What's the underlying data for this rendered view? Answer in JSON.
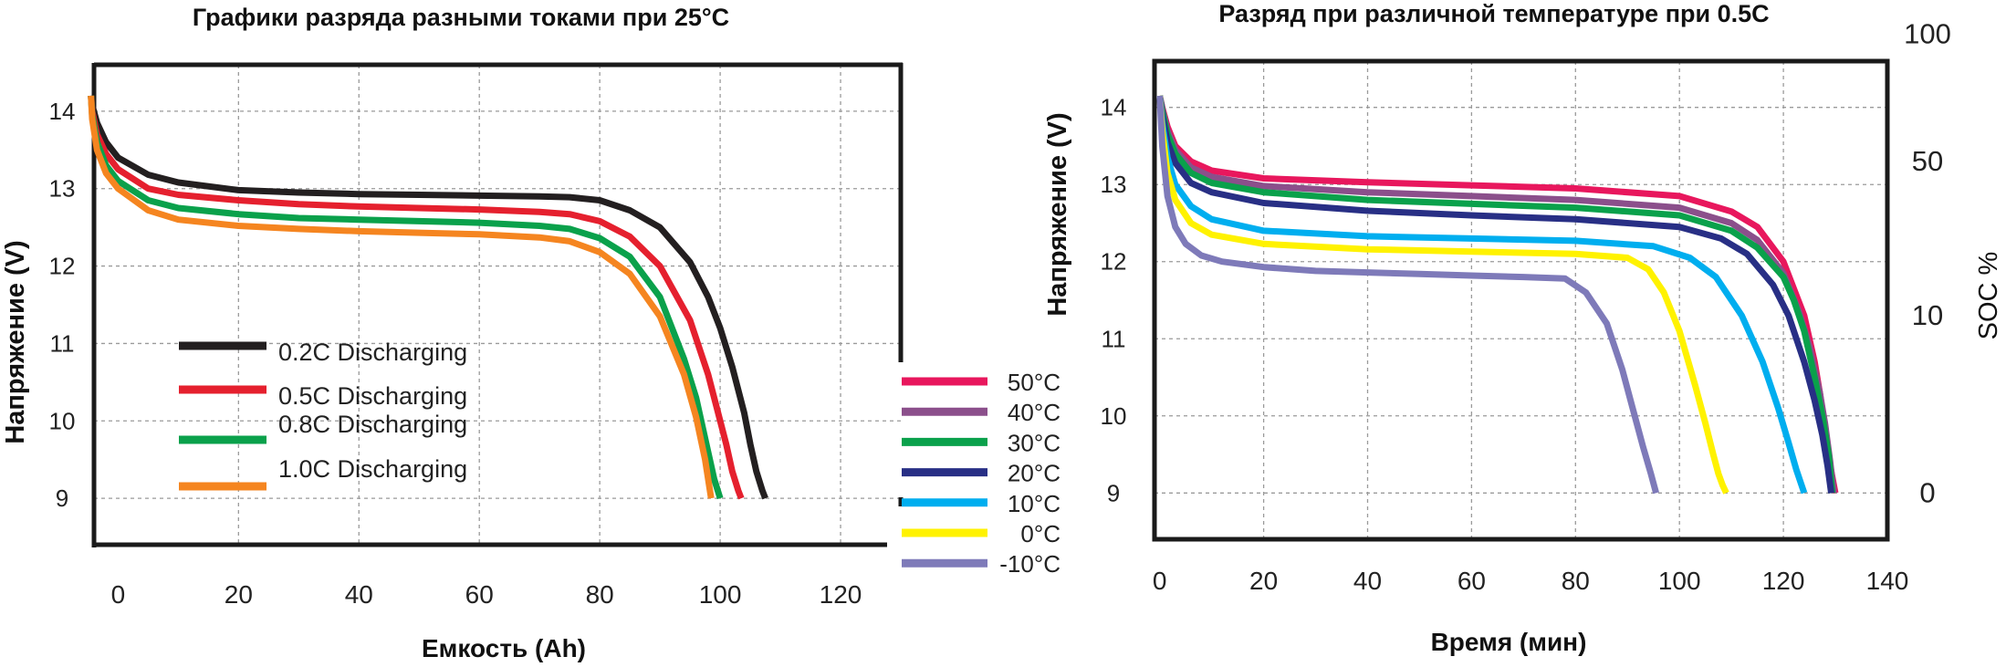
{
  "chart_data": [
    {
      "type": "line",
      "title": "Графики разряда разными токами при 25°C",
      "xlabel": "Емкость (Ah)",
      "ylabel": "Напряжение (V)",
      "xlim": [
        -4,
        130
      ],
      "ylim": [
        8.4,
        14.6
      ],
      "xticks": [
        "0",
        "20",
        "40",
        "60",
        "80",
        "100",
        "120"
      ],
      "xtick_values": [
        0,
        20,
        40,
        60,
        80,
        100,
        120
      ],
      "yticks": [
        "9",
        "10",
        "11",
        "12",
        "13",
        "14"
      ],
      "ytick_values": [
        9,
        10,
        11,
        12,
        13,
        14
      ],
      "grid": true,
      "legend_position": "inside-left",
      "series": [
        {
          "name": "0.2C Discharging",
          "color": "#231f20",
          "x": [
            -4.5,
            -4.3,
            -3.5,
            -2,
            0,
            5,
            10,
            20,
            30,
            40,
            50,
            60,
            70,
            75,
            80,
            85,
            90,
            95,
            98,
            100,
            102,
            104,
            105,
            106,
            107,
            107.5
          ],
          "y": [
            14.2,
            14.08,
            13.85,
            13.6,
            13.4,
            13.18,
            13.08,
            12.98,
            12.95,
            12.93,
            12.92,
            12.91,
            12.9,
            12.89,
            12.85,
            12.72,
            12.5,
            12.05,
            11.6,
            11.2,
            10.7,
            10.1,
            9.7,
            9.35,
            9.1,
            9.0
          ]
        },
        {
          "name": "0.5C Discharging",
          "color": "#e5202e",
          "x": [
            -4.5,
            -4.3,
            -3.5,
            -2,
            0,
            5,
            10,
            20,
            30,
            40,
            50,
            60,
            70,
            75,
            80,
            85,
            90,
            95,
            98,
            100,
            101,
            102,
            103,
            103.5
          ],
          "y": [
            14.2,
            14.0,
            13.7,
            13.45,
            13.25,
            13.0,
            12.92,
            12.85,
            12.8,
            12.77,
            12.75,
            12.73,
            12.7,
            12.67,
            12.58,
            12.38,
            12.0,
            11.3,
            10.6,
            10.0,
            9.7,
            9.35,
            9.1,
            9.0
          ]
        },
        {
          "name": "0.8C Discharging",
          "color": "#0aa14b",
          "x": [
            -4.5,
            -4.3,
            -3.5,
            -2,
            0,
            5,
            10,
            20,
            30,
            40,
            50,
            60,
            70,
            75,
            80,
            85,
            90,
            94,
            96,
            98,
            99,
            100
          ],
          "y": [
            14.2,
            13.95,
            13.6,
            13.3,
            13.1,
            12.85,
            12.75,
            12.67,
            12.62,
            12.6,
            12.58,
            12.56,
            12.52,
            12.48,
            12.36,
            12.12,
            11.6,
            10.8,
            10.3,
            9.6,
            9.25,
            9.0
          ]
        },
        {
          "name": "1.0C Discharging",
          "color": "#f58520",
          "x": [
            -4.5,
            -4.3,
            -3.5,
            -2,
            0,
            5,
            10,
            20,
            30,
            40,
            50,
            60,
            70,
            75,
            80,
            85,
            90,
            94,
            96,
            97.5,
            98.5
          ],
          "y": [
            14.2,
            13.9,
            13.5,
            13.2,
            13.0,
            12.72,
            12.6,
            12.52,
            12.48,
            12.45,
            12.43,
            12.41,
            12.37,
            12.32,
            12.18,
            11.9,
            11.35,
            10.6,
            10.05,
            9.5,
            9.0
          ]
        }
      ]
    },
    {
      "type": "line",
      "title": "Разряд при различной температуре при 0.5C",
      "xlabel": "Время (мин)",
      "ylabel": "Напряжение (V)",
      "y2label": "SOC %",
      "xlim": [
        -1,
        140
      ],
      "ylim": [
        8.4,
        14.6
      ],
      "xticks": [
        "0",
        "20",
        "40",
        "60",
        "80",
        "100",
        "120",
        "140"
      ],
      "xtick_values": [
        0,
        20,
        40,
        60,
        80,
        100,
        120,
        140
      ],
      "yticks": [
        "9",
        "10",
        "11",
        "12",
        "13",
        "14"
      ],
      "ytick_values": [
        9,
        10,
        11,
        12,
        13,
        14
      ],
      "y2ticks": [
        "0",
        "10",
        "50",
        "100"
      ],
      "y2tick_voltages": [
        9.0,
        11.3,
        13.3,
        14.95
      ],
      "grid": true,
      "legend_position": "left-outside",
      "series": [
        {
          "name": "50°C",
          "color": "#e8175d",
          "x": [
            0,
            0.5,
            1.5,
            3,
            6,
            10,
            20,
            40,
            60,
            80,
            100,
            110,
            115,
            120,
            124,
            126,
            127,
            128,
            129,
            130
          ],
          "y": [
            14.15,
            14.0,
            13.75,
            13.5,
            13.3,
            13.18,
            13.08,
            13.03,
            12.99,
            12.95,
            12.85,
            12.65,
            12.45,
            12.0,
            11.3,
            10.7,
            10.3,
            9.8,
            9.35,
            9.0
          ]
        },
        {
          "name": "40°C",
          "color": "#8b4f8b",
          "x": [
            0,
            0.5,
            1.5,
            3,
            6,
            10,
            20,
            40,
            60,
            80,
            100,
            110,
            115,
            120,
            123,
            125,
            127,
            128,
            129,
            129.7
          ],
          "y": [
            14.15,
            13.98,
            13.7,
            13.45,
            13.22,
            13.1,
            12.98,
            12.9,
            12.85,
            12.8,
            12.7,
            12.5,
            12.28,
            11.85,
            11.35,
            10.9,
            10.3,
            9.9,
            9.4,
            9.0
          ]
        },
        {
          "name": "30°C",
          "color": "#0aa14b",
          "x": [
            0,
            0.5,
            1.5,
            3,
            6,
            10,
            20,
            40,
            60,
            80,
            100,
            110,
            115,
            120,
            122,
            124,
            126,
            127.5,
            128.7,
            129.4
          ],
          "y": [
            14.15,
            13.95,
            13.65,
            13.4,
            13.15,
            13.02,
            12.9,
            12.8,
            12.75,
            12.7,
            12.6,
            12.4,
            12.18,
            11.8,
            11.5,
            11.1,
            10.5,
            10.0,
            9.5,
            9.0
          ]
        },
        {
          "name": "20°C",
          "color": "#282f85",
          "x": [
            0,
            0.5,
            1.5,
            3,
            6,
            10,
            20,
            40,
            60,
            80,
            100,
            108,
            113,
            118,
            121,
            124,
            126,
            127.5,
            128.5,
            129.2
          ],
          "y": [
            14.15,
            13.9,
            13.55,
            13.28,
            13.02,
            12.9,
            12.76,
            12.66,
            12.6,
            12.55,
            12.45,
            12.3,
            12.1,
            11.7,
            11.3,
            10.7,
            10.2,
            9.75,
            9.35,
            9.0
          ]
        },
        {
          "name": "10°C",
          "color": "#00aeef",
          "x": [
            0,
            0.5,
            1.5,
            3,
            6,
            10,
            20,
            40,
            60,
            80,
            95,
            102,
            107,
            112,
            116,
            119,
            121,
            122.5,
            123.5,
            124
          ],
          "y": [
            14.15,
            13.8,
            13.35,
            13.0,
            12.72,
            12.55,
            12.4,
            12.33,
            12.3,
            12.27,
            12.2,
            12.05,
            11.8,
            11.3,
            10.7,
            10.1,
            9.65,
            9.3,
            9.1,
            9.0
          ]
        },
        {
          "name": "0°C",
          "color": "#fff200",
          "x": [
            0,
            0.5,
            1.5,
            3,
            6,
            10,
            20,
            40,
            60,
            80,
            90,
            94,
            97,
            100,
            103,
            105,
            106.5,
            107.5,
            108.3,
            109
          ],
          "y": [
            14.15,
            13.7,
            13.15,
            12.8,
            12.5,
            12.35,
            12.23,
            12.16,
            12.13,
            12.1,
            12.05,
            11.9,
            11.6,
            11.1,
            10.4,
            9.9,
            9.5,
            9.25,
            9.1,
            9.0
          ]
        },
        {
          "name": "-10°C",
          "color": "#7e7ab9",
          "x": [
            0,
            0.5,
            1.5,
            3,
            5,
            8,
            12,
            20,
            30,
            40,
            50,
            60,
            70,
            78,
            82,
            86,
            89,
            91,
            93,
            94.5,
            95.5
          ],
          "y": [
            14.15,
            13.5,
            12.85,
            12.45,
            12.23,
            12.08,
            12.0,
            11.93,
            11.88,
            11.86,
            11.84,
            11.82,
            11.8,
            11.78,
            11.6,
            11.2,
            10.6,
            10.1,
            9.6,
            9.25,
            9.0
          ]
        }
      ]
    }
  ]
}
